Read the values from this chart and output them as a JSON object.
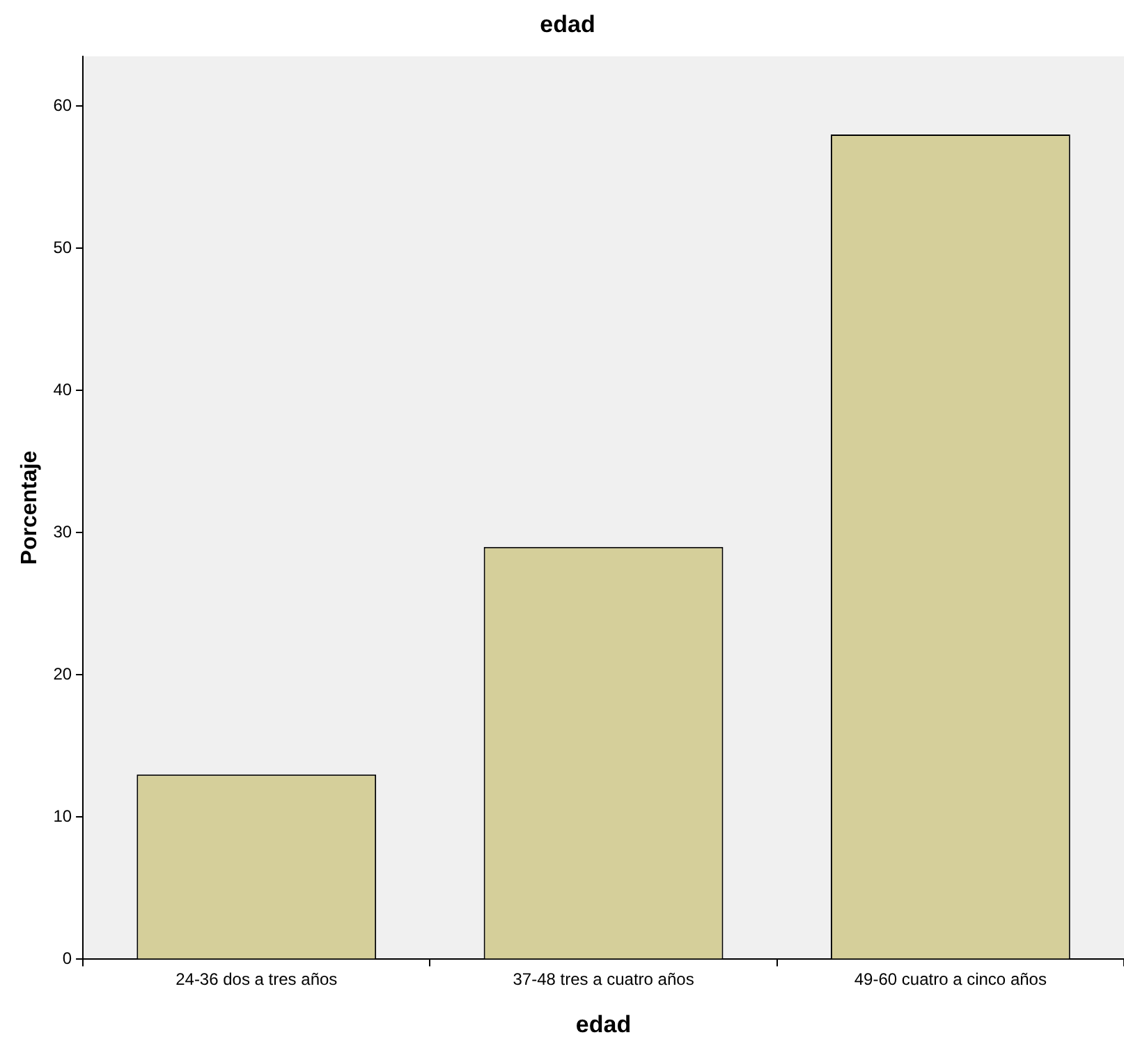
{
  "chart_data": {
    "type": "bar",
    "title": "edad",
    "xlabel": "edad",
    "ylabel": "Porcentaje",
    "categories": [
      "24-36 dos a tres años",
      "37-48 tres a cuatro años",
      "49-60 cuatro a cinco años"
    ],
    "values": [
      13,
      29,
      58
    ],
    "color": "#d5cf9a",
    "ylim": [
      0,
      63.5
    ],
    "yticks": [
      0,
      10,
      20,
      30,
      40,
      50,
      60
    ],
    "grid": false,
    "legend": false
  }
}
